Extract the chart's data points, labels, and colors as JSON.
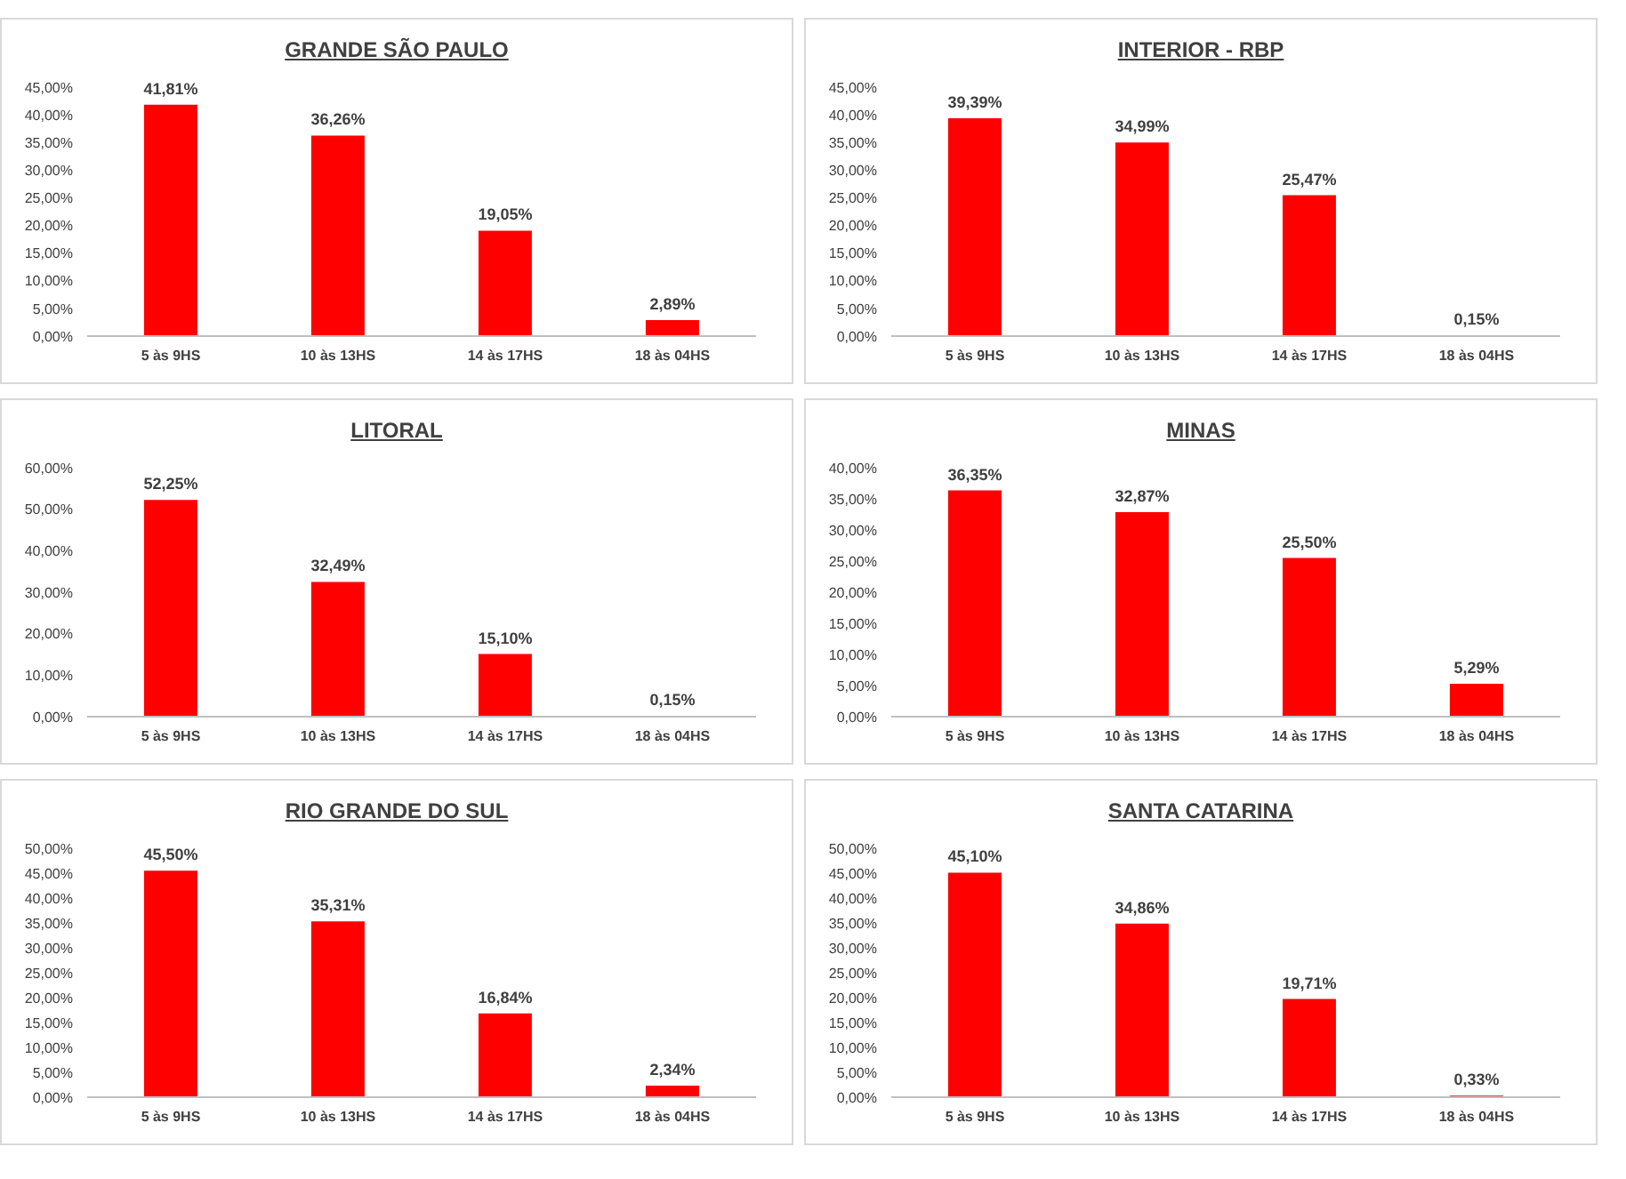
{
  "chart_data": [
    {
      "type": "bar",
      "title": "GRANDE SÃO PAULO",
      "categories": [
        "5 às 9HS",
        "10 às 13HS",
        "14 às 17HS",
        "18 às 04HS"
      ],
      "values": [
        41.81,
        36.26,
        19.05,
        2.89
      ],
      "value_labels": [
        "41,81%",
        "36,26%",
        "19,05%",
        "2,89%"
      ],
      "color": "#ff0000",
      "ylim": [
        0,
        45
      ],
      "yticks": [
        {
          "value": 0,
          "label": "0,00%"
        },
        {
          "value": 5,
          "label": "5,00%"
        },
        {
          "value": 10,
          "label": "10,00%"
        },
        {
          "value": 15,
          "label": "15,00%"
        },
        {
          "value": 20,
          "label": "20,00%"
        },
        {
          "value": 25,
          "label": "25,00%"
        },
        {
          "value": 30,
          "label": "30,00%"
        },
        {
          "value": 35,
          "label": "35,00%"
        },
        {
          "value": 40,
          "label": "40,00%"
        },
        {
          "value": 45,
          "label": "45,00%"
        }
      ]
    },
    {
      "type": "bar",
      "title": "INTERIOR - RBP",
      "categories": [
        "5 às 9HS",
        "10 às 13HS",
        "14 às 17HS",
        "18 às 04HS"
      ],
      "values": [
        39.39,
        34.99,
        25.47,
        0.15
      ],
      "value_labels": [
        "39,39%",
        "34,99%",
        "25,47%",
        "0,15%"
      ],
      "color": "#ff0000",
      "ylim": [
        0,
        45
      ],
      "yticks": [
        {
          "value": 0,
          "label": "0,00%"
        },
        {
          "value": 5,
          "label": "5,00%"
        },
        {
          "value": 10,
          "label": "10,00%"
        },
        {
          "value": 15,
          "label": "15,00%"
        },
        {
          "value": 20,
          "label": "20,00%"
        },
        {
          "value": 25,
          "label": "25,00%"
        },
        {
          "value": 30,
          "label": "30,00%"
        },
        {
          "value": 35,
          "label": "35,00%"
        },
        {
          "value": 40,
          "label": "40,00%"
        },
        {
          "value": 45,
          "label": "45,00%"
        }
      ]
    },
    {
      "type": "bar",
      "title": "LITORAL",
      "categories": [
        "5 às 9HS",
        "10 às 13HS",
        "14 às 17HS",
        "18 às 04HS"
      ],
      "values": [
        52.25,
        32.49,
        15.1,
        0.15
      ],
      "value_labels": [
        "52,25%",
        "32,49%",
        "15,10%",
        "0,15%"
      ],
      "color": "#ff0000",
      "ylim": [
        0,
        60
      ],
      "yticks": [
        {
          "value": 0,
          "label": "0,00%"
        },
        {
          "value": 10,
          "label": "10,00%"
        },
        {
          "value": 20,
          "label": "20,00%"
        },
        {
          "value": 30,
          "label": "30,00%"
        },
        {
          "value": 40,
          "label": "40,00%"
        },
        {
          "value": 50,
          "label": "50,00%"
        },
        {
          "value": 60,
          "label": "60,00%"
        }
      ]
    },
    {
      "type": "bar",
      "title": "MINAS",
      "categories": [
        "5 às 9HS",
        "10 às 13HS",
        "14 às 17HS",
        "18 às 04HS"
      ],
      "values": [
        36.35,
        32.87,
        25.5,
        5.29
      ],
      "value_labels": [
        "36,35%",
        "32,87%",
        "25,50%",
        "5,29%"
      ],
      "color": "#ff0000",
      "ylim": [
        0,
        40
      ],
      "yticks": [
        {
          "value": 0,
          "label": "0,00%"
        },
        {
          "value": 5,
          "label": "5,00%"
        },
        {
          "value": 10,
          "label": "10,00%"
        },
        {
          "value": 15,
          "label": "15,00%"
        },
        {
          "value": 20,
          "label": "20,00%"
        },
        {
          "value": 25,
          "label": "25,00%"
        },
        {
          "value": 30,
          "label": "30,00%"
        },
        {
          "value": 35,
          "label": "35,00%"
        },
        {
          "value": 40,
          "label": "40,00%"
        }
      ]
    },
    {
      "type": "bar",
      "title": "RIO GRANDE DO SUL",
      "categories": [
        "5 às 9HS",
        "10 às 13HS",
        "14 às 17HS",
        "18 às 04HS"
      ],
      "values": [
        45.5,
        35.31,
        16.84,
        2.34
      ],
      "value_labels": [
        "45,50%",
        "35,31%",
        "16,84%",
        "2,34%"
      ],
      "color": "#ff0000",
      "ylim": [
        0,
        50
      ],
      "yticks": [
        {
          "value": 0,
          "label": "0,00%"
        },
        {
          "value": 5,
          "label": "5,00%"
        },
        {
          "value": 10,
          "label": "10,00%"
        },
        {
          "value": 15,
          "label": "15,00%"
        },
        {
          "value": 20,
          "label": "20,00%"
        },
        {
          "value": 25,
          "label": "25,00%"
        },
        {
          "value": 30,
          "label": "30,00%"
        },
        {
          "value": 35,
          "label": "35,00%"
        },
        {
          "value": 40,
          "label": "40,00%"
        },
        {
          "value": 45,
          "label": "45,00%"
        },
        {
          "value": 50,
          "label": "50,00%"
        }
      ]
    },
    {
      "type": "bar",
      "title": "SANTA CATARINA",
      "categories": [
        "5 às 9HS",
        "10 às 13HS",
        "14 às 17HS",
        "18 às 04HS"
      ],
      "values": [
        45.1,
        34.86,
        19.71,
        0.33
      ],
      "value_labels": [
        "45,10%",
        "34,86%",
        "19,71%",
        "0,33%"
      ],
      "color": "#ff0000",
      "ylim": [
        0,
        50
      ],
      "yticks": [
        {
          "value": 0,
          "label": "0,00%"
        },
        {
          "value": 5,
          "label": "5,00%"
        },
        {
          "value": 10,
          "label": "10,00%"
        },
        {
          "value": 15,
          "label": "15,00%"
        },
        {
          "value": 20,
          "label": "20,00%"
        },
        {
          "value": 25,
          "label": "25,00%"
        },
        {
          "value": 30,
          "label": "30,00%"
        },
        {
          "value": 35,
          "label": "35,00%"
        },
        {
          "value": 40,
          "label": "40,00%"
        },
        {
          "value": 45,
          "label": "45,00%"
        },
        {
          "value": 50,
          "label": "50,00%"
        }
      ]
    }
  ]
}
